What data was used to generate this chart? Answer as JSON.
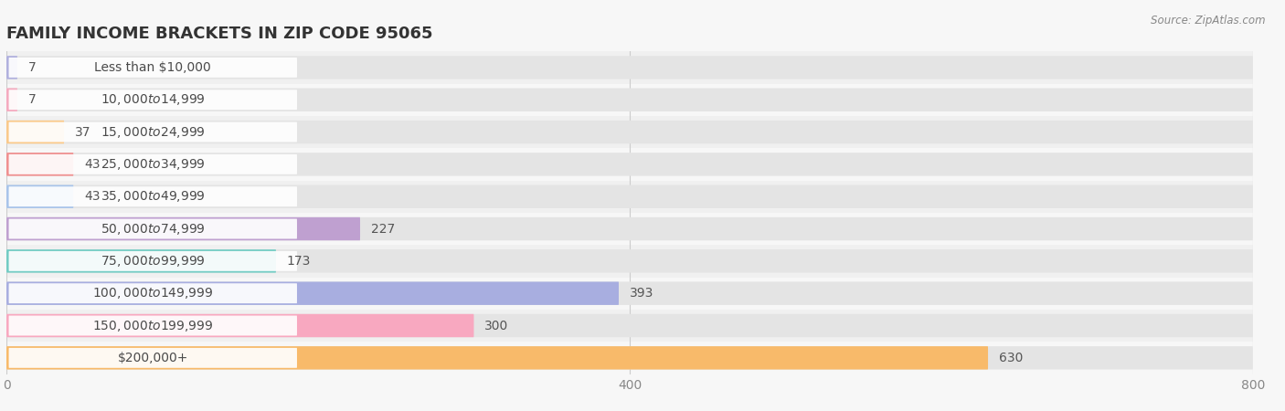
{
  "title": "FAMILY INCOME BRACKETS IN ZIP CODE 95065",
  "source": "Source: ZipAtlas.com",
  "categories": [
    "Less than $10,000",
    "$10,000 to $14,999",
    "$15,000 to $24,999",
    "$25,000 to $34,999",
    "$35,000 to $49,999",
    "$50,000 to $74,999",
    "$75,000 to $99,999",
    "$100,000 to $149,999",
    "$150,000 to $199,999",
    "$200,000+"
  ],
  "values": [
    7,
    7,
    37,
    43,
    43,
    227,
    173,
    393,
    300,
    630
  ],
  "bar_colors": [
    "#b0b0de",
    "#f5aabf",
    "#fac98a",
    "#f09090",
    "#a8c4ea",
    "#bfa0d0",
    "#72ccc4",
    "#a8aee0",
    "#f8a8c0",
    "#f8ba6a"
  ],
  "background_color": "#f7f7f7",
  "row_bg_colors": [
    "#f0f0f0",
    "#f7f7f7"
  ],
  "bar_background_color": "#e4e4e4",
  "xlim": [
    0,
    800
  ],
  "xticks": [
    0,
    400,
    800
  ],
  "title_fontsize": 13,
  "label_fontsize": 10,
  "value_fontsize": 10
}
